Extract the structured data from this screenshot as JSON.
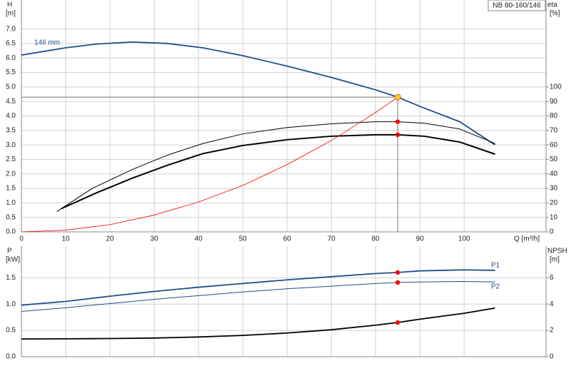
{
  "chart_data": [
    {
      "type": "line",
      "title": "NB 80-160/146",
      "ylabel": "H",
      "yunit": "[m]",
      "y2label": "eta",
      "y2unit": "[%]",
      "xlabel": "Q [m³/h]",
      "xlim": [
        0,
        118.5
      ],
      "xticks": [
        0,
        10,
        20,
        30,
        40,
        50,
        60,
        70,
        80,
        90,
        100
      ],
      "ylim": [
        0,
        8
      ],
      "yticks": [
        {
          "value": 0,
          "label": "0.0"
        },
        0.5,
        {
          "value": 1,
          "label": "1.0"
        },
        1.5,
        {
          "value": 2,
          "label": "2.0"
        },
        2.5,
        {
          "value": 3,
          "label": "3.0"
        },
        3.5,
        {
          "value": 4,
          "label": "4.0"
        },
        4.5,
        {
          "value": 5,
          "label": "5.0"
        },
        5.5,
        {
          "value": 6,
          "label": "6.0"
        },
        6.5,
        {
          "value": 7,
          "label": "7.0"
        }
      ],
      "y2lim": [
        0,
        160
      ],
      "y2ticks": [
        0,
        10,
        20,
        30,
        40,
        50,
        60,
        70,
        80,
        90,
        100
      ],
      "grid": true,
      "series": [
        {
          "name": "146 mm",
          "color": "#1f4e8c",
          "width": 1.8,
          "x": [
            0,
            10,
            17,
            25,
            33,
            41,
            50,
            60,
            70,
            80,
            85,
            90,
            99,
            107
          ],
          "values": [
            6.1,
            6.35,
            6.48,
            6.55,
            6.5,
            6.35,
            6.08,
            5.72,
            5.33,
            4.9,
            4.65,
            4.33,
            3.8,
            3.0
          ]
        },
        {
          "color": "#000000",
          "width": 1,
          "axis": "y2",
          "x": [
            8,
            16,
            25,
            33,
            41,
            50,
            60,
            70,
            80,
            85,
            91,
            99,
            107
          ],
          "values": [
            14,
            30,
            43,
            53,
            61,
            67.6,
            72,
            74.6,
            76,
            76,
            75,
            71,
            61
          ]
        },
        {
          "color": "#000000",
          "width": 2,
          "axis": "y2",
          "x": [
            9,
            17,
            25,
            33,
            41,
            50,
            60,
            70,
            80,
            85,
            91,
            99,
            107
          ],
          "values": [
            16,
            27,
            37,
            46,
            54,
            59.6,
            63.6,
            66,
            67,
            67,
            66,
            62,
            53.6
          ]
        },
        {
          "color": "#ff0000",
          "width": 0.8,
          "x": [
            0,
            10,
            20,
            30,
            40,
            50,
            60,
            70,
            80,
            85
          ],
          "values": [
            0,
            0.06,
            0.25,
            0.58,
            1.03,
            1.6,
            2.32,
            3.15,
            4.12,
            4.65
          ]
        }
      ],
      "duty_point": {
        "x": 85,
        "y": [
          4.65
        ],
        "y2": [
          76,
          67
        ]
      }
    },
    {
      "type": "line",
      "ylabel": "P",
      "yunit": "[kW]",
      "y2label": "NPSH",
      "y2unit": "[m]",
      "xlim": [
        0,
        118.5
      ],
      "ylim": [
        0,
        2.1
      ],
      "yticks": [
        {
          "value": 0,
          "label": "0.0"
        },
        0.5,
        {
          "value": 1,
          "label": "1.0"
        },
        1.5
      ],
      "y2lim": [
        0,
        8.4
      ],
      "y2ticks": [
        0,
        2,
        4,
        6
      ],
      "grid": true,
      "series": [
        {
          "name": "P1",
          "color": "#1f4e8c",
          "width": 1.8,
          "x": [
            0,
            10,
            20,
            30,
            40,
            50,
            60,
            70,
            80,
            85,
            90,
            100,
            107
          ],
          "values": [
            0.98,
            1.05,
            1.15,
            1.24,
            1.32,
            1.39,
            1.46,
            1.52,
            1.58,
            1.6,
            1.63,
            1.65,
            1.64
          ]
        },
        {
          "name": "P2",
          "color": "#1f4e8c",
          "width": 1,
          "x": [
            0,
            10,
            20,
            30,
            40,
            50,
            60,
            70,
            80,
            85,
            90,
            100,
            107
          ],
          "values": [
            0.86,
            0.93,
            1.01,
            1.09,
            1.16,
            1.23,
            1.29,
            1.34,
            1.39,
            1.41,
            1.42,
            1.43,
            1.42
          ]
        },
        {
          "color": "#000000",
          "width": 1.8,
          "axis": "y2",
          "x": [
            0,
            10,
            20,
            30,
            40,
            50,
            60,
            70,
            80,
            85,
            90,
            100,
            107
          ],
          "values": [
            1.35,
            1.36,
            1.38,
            1.42,
            1.5,
            1.62,
            1.8,
            2.05,
            2.4,
            2.6,
            2.85,
            3.3,
            3.7
          ]
        }
      ],
      "duty_point": {
        "x": 85,
        "y": [
          1.6,
          1.41
        ],
        "y2": [
          2.6
        ]
      }
    }
  ]
}
